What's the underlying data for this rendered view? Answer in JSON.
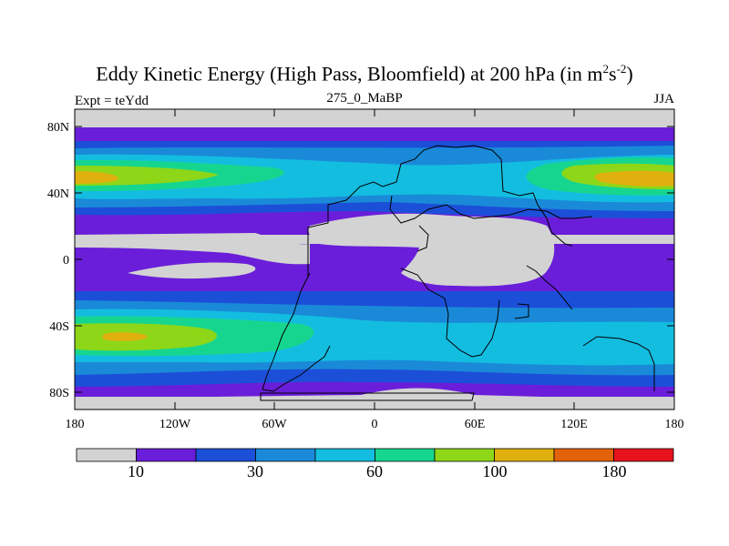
{
  "title": "Eddy Kinetic Energy (High Pass, Bloomfield) at 200 hPa (in m",
  "title_sup1": "2",
  "title_mid": "s",
  "title_sup2": "-2",
  "title_end": ")",
  "subtitle": "275_0_MaBP",
  "left_label": "Expt = teYdd",
  "right_label": "JJA",
  "lat_ticks": [
    "80N",
    "40N",
    "0",
    "40S",
    "80S"
  ],
  "lon_ticks": [
    "180",
    "120W",
    "60W",
    "0",
    "60E",
    "120E",
    "180"
  ],
  "colorbar": {
    "colors": [
      "#d3d3d3",
      "#6a1ed9",
      "#1c4fd8",
      "#1a8ad8",
      "#13bde0",
      "#16d68f",
      "#8ed618",
      "#e0b00f",
      "#e2620c",
      "#e8121c"
    ],
    "labels": [
      "10",
      "30",
      "60",
      "100",
      "180"
    ]
  },
  "chart_data": {
    "type": "heatmap",
    "title": "Eddy Kinetic Energy (High Pass, Bloomfield) at 200 hPa (in m^2 s^-2)",
    "subtitle": "275_0_MaBP",
    "experiment": "Expt = teYdd",
    "season": "JJA",
    "x_axis": {
      "ticks": [
        "180",
        "120W",
        "60W",
        "0",
        "60E",
        "120E",
        "180"
      ],
      "range": [
        -180,
        180
      ]
    },
    "y_axis": {
      "ticks": [
        "80N",
        "40N",
        "0",
        "40S",
        "80S"
      ],
      "range": [
        -90,
        90
      ]
    },
    "colorbar_levels": [
      "10",
      "30",
      "60",
      "100",
      "180"
    ],
    "bands": [
      {
        "lat_range": [
          72,
          90
        ],
        "level": "<10"
      },
      {
        "lat_range": [
          38,
          60
        ],
        "level": "up to 100-140 (maximum near 180 longitude)"
      },
      {
        "lat_range": [
          -15,
          15
        ],
        "level": "<10 (equatorial minimum)"
      },
      {
        "lat_range": [
          -55,
          -35
        ],
        "level": "up to 100 (maximum near 140W)"
      },
      {
        "lat_range": [
          -90,
          -80
        ],
        "level": "<10"
      }
    ]
  }
}
